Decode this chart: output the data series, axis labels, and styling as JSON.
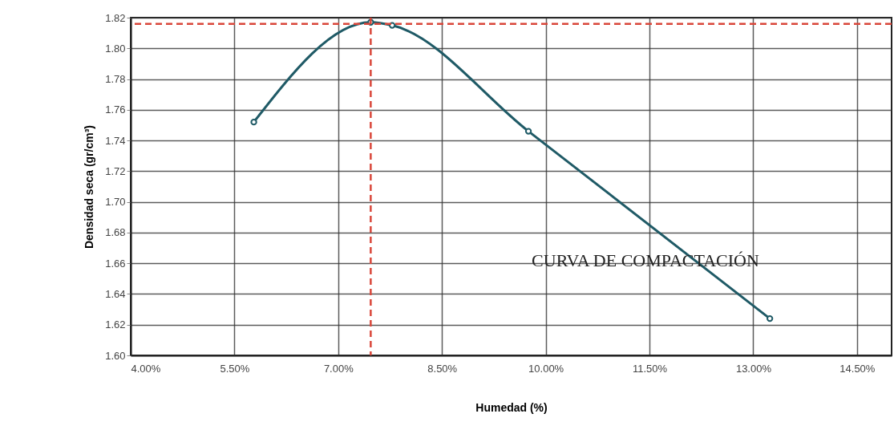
{
  "chart_data": {
    "type": "line",
    "xlabel": "Humedad (%)",
    "ylabel": "Densidad seca (gr/cm³)",
    "x": [
      5.78,
      7.47,
      7.78,
      9.75,
      13.24
    ],
    "series": [
      {
        "color": "#1f5a66",
        "values": [
          1.752,
          1.817,
          1.815,
          1.746,
          1.624
        ]
      }
    ],
    "xlim": [
      4,
      15
    ],
    "ylim": [
      1.6,
      1.82
    ],
    "xticks": [
      {
        "value": 4,
        "label": "4.00%"
      },
      {
        "value": 5.5,
        "label": "5.50%"
      },
      {
        "value": 7,
        "label": "7.00%"
      },
      {
        "value": 8.5,
        "label": "8.50%"
      },
      {
        "value": 10,
        "label": "10.00%"
      },
      {
        "value": 11.5,
        "label": "11.50%"
      },
      {
        "value": 13,
        "label": "13.00%"
      },
      {
        "value": 14.5,
        "label": "14.50%"
      }
    ],
    "yticks": [
      {
        "value": 1.6,
        "label": "1.60"
      },
      {
        "value": 1.62,
        "label": "1.62"
      },
      {
        "value": 1.64,
        "label": "1.64"
      },
      {
        "value": 1.66,
        "label": "1.66"
      },
      {
        "value": 1.68,
        "label": "1.68"
      },
      {
        "value": 1.7,
        "label": "1.70"
      },
      {
        "value": 1.72,
        "label": "1.72"
      },
      {
        "value": 1.74,
        "label": "1.74"
      },
      {
        "value": 1.76,
        "label": "1.76"
      },
      {
        "value": 1.78,
        "label": "1.78"
      },
      {
        "value": 1.8,
        "label": "1.80"
      },
      {
        "value": 1.82,
        "label": "1.82"
      }
    ],
    "ref_lines": [
      {
        "axis": "y",
        "value": 1.816,
        "color": "#d9463a",
        "line_style": "dashed"
      },
      {
        "axis": "x",
        "value": 7.47,
        "color": "#d9463a",
        "line_style": "dashed"
      }
    ],
    "annotations": [
      "CURVA DE COMPACTACIÓN"
    ],
    "grid": true,
    "marker": "circle",
    "line_style": "solid"
  }
}
